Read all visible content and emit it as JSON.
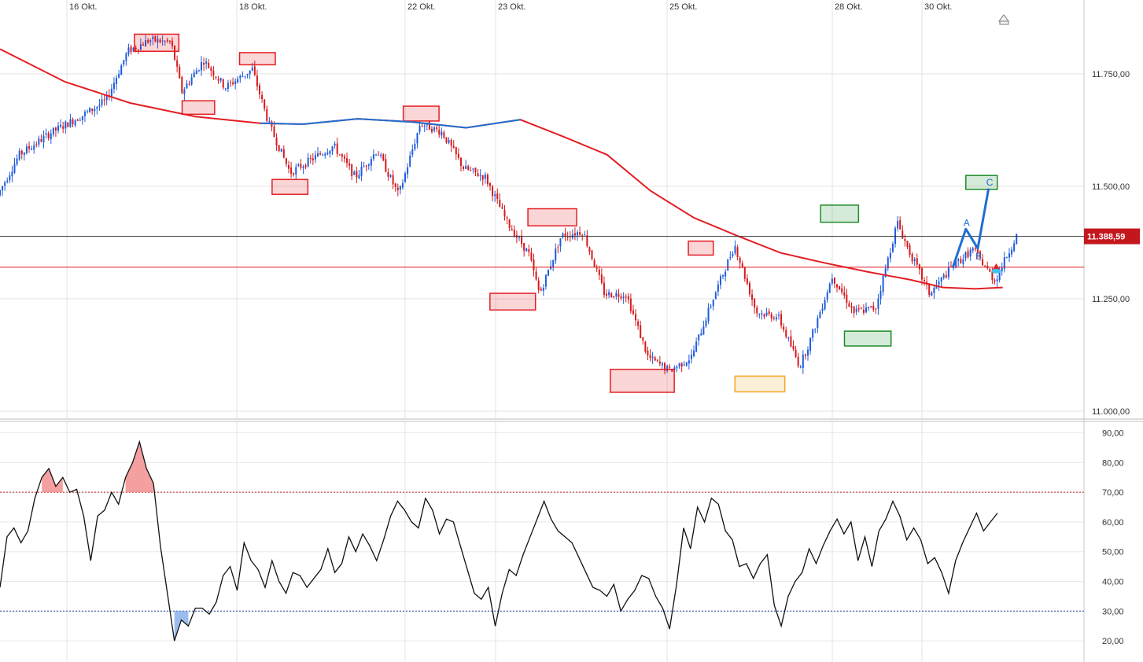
{
  "chart_data": [
    {
      "type": "candlestick",
      "x_labels": [
        "16 Okt.",
        "18 Okt.",
        "22 Okt.",
        "23 Okt.",
        "25 Okt.",
        "28 Okt.",
        "30 Okt."
      ],
      "y_ticks": [
        "11.750,00",
        "11.500,00",
        "11.250,00",
        "11.000,00"
      ],
      "ylim": [
        11000,
        11900
      ],
      "last_price_label": "11.388,59",
      "last_price": 11388.59,
      "reference_level": 11320,
      "grid": true,
      "moving_average_path": [
        [
          0,
          11805
        ],
        [
          0.06,
          11732
        ],
        [
          0.12,
          11685
        ],
        [
          0.18,
          11655
        ],
        [
          0.24,
          11640
        ],
        [
          0.28,
          11638
        ],
        [
          0.33,
          11650
        ],
        [
          0.38,
          11643
        ],
        [
          0.43,
          11630
        ],
        [
          0.48,
          11648
        ],
        [
          0.52,
          11610
        ],
        [
          0.56,
          11570
        ],
        [
          0.6,
          11490
        ],
        [
          0.64,
          11430
        ],
        [
          0.68,
          11390
        ],
        [
          0.72,
          11352
        ],
        [
          0.76,
          11330
        ],
        [
          0.8,
          11310
        ],
        [
          0.84,
          11292
        ],
        [
          0.87,
          11275
        ],
        [
          0.9,
          11272
        ],
        [
          0.925,
          11275
        ]
      ],
      "price_path": [
        [
          0.0,
          11480
        ],
        [
          0.02,
          11570
        ],
        [
          0.05,
          11620
        ],
        [
          0.08,
          11660
        ],
        [
          0.1,
          11690
        ],
        [
          0.12,
          11800
        ],
        [
          0.14,
          11825
        ],
        [
          0.16,
          11820
        ],
        [
          0.17,
          11710
        ],
        [
          0.19,
          11780
        ],
        [
          0.21,
          11720
        ],
        [
          0.235,
          11760
        ],
        [
          0.25,
          11640
        ],
        [
          0.27,
          11530
        ],
        [
          0.29,
          11560
        ],
        [
          0.31,
          11590
        ],
        [
          0.33,
          11520
        ],
        [
          0.35,
          11580
        ],
        [
          0.37,
          11480
        ],
        [
          0.39,
          11640
        ],
        [
          0.41,
          11620
        ],
        [
          0.43,
          11540
        ],
        [
          0.45,
          11520
        ],
        [
          0.47,
          11420
        ],
        [
          0.49,
          11350
        ],
        [
          0.5,
          11260
        ],
        [
          0.52,
          11390
        ],
        [
          0.54,
          11400
        ],
        [
          0.56,
          11260
        ],
        [
          0.58,
          11260
        ],
        [
          0.6,
          11120
        ],
        [
          0.62,
          11090
        ],
        [
          0.64,
          11120
        ],
        [
          0.66,
          11250
        ],
        [
          0.68,
          11370
        ],
        [
          0.7,
          11220
        ],
        [
          0.72,
          11210
        ],
        [
          0.74,
          11100
        ],
        [
          0.75,
          11160
        ],
        [
          0.77,
          11300
        ],
        [
          0.79,
          11220
        ],
        [
          0.81,
          11230
        ],
        [
          0.83,
          11420
        ],
        [
          0.84,
          11360
        ],
        [
          0.86,
          11260
        ],
        [
          0.88,
          11320
        ],
        [
          0.9,
          11360
        ],
        [
          0.92,
          11290
        ],
        [
          0.94,
          11390
        ]
      ],
      "pattern_boxes": [
        {
          "x": [
            0.124,
            0.165
          ],
          "y": [
            11800,
            11838
          ],
          "color": "#e31e24"
        },
        {
          "x": [
            0.221,
            0.254
          ],
          "y": [
            11770,
            11797
          ],
          "color": "#e31e24"
        },
        {
          "x": [
            0.168,
            0.198
          ],
          "y": [
            11660,
            11690
          ],
          "color": "#e31e24"
        },
        {
          "x": [
            0.251,
            0.284
          ],
          "y": [
            11482,
            11515
          ],
          "color": "#e31e24"
        },
        {
          "x": [
            0.372,
            0.405
          ],
          "y": [
            11645,
            11678
          ],
          "color": "#e31e24"
        },
        {
          "x": [
            0.487,
            0.532
          ],
          "y": [
            11412,
            11450
          ],
          "color": "#e31e24"
        },
        {
          "x": [
            0.452,
            0.494
          ],
          "y": [
            11225,
            11262
          ],
          "color": "#e31e24"
        },
        {
          "x": [
            0.563,
            0.622
          ],
          "y": [
            11042,
            11093
          ],
          "color": "#e31e24"
        },
        {
          "x": [
            0.635,
            0.658
          ],
          "y": [
            11347,
            11378
          ],
          "color": "#e31e24"
        },
        {
          "x": [
            0.678,
            0.724
          ],
          "y": [
            11043,
            11078
          ],
          "color": "#f5a623"
        },
        {
          "x": [
            0.757,
            0.792
          ],
          "y": [
            11420,
            11458
          ],
          "color": "#1e8c2a"
        },
        {
          "x": [
            0.779,
            0.822
          ],
          "y": [
            11145,
            11178
          ],
          "color": "#1e8c2a"
        },
        {
          "x": [
            0.891,
            0.92
          ],
          "y": [
            11493,
            11524
          ],
          "color": "#1e8c2a"
        }
      ],
      "wave_projection": {
        "points": [
          [
            0.879,
            11320
          ],
          [
            0.891,
            11405
          ],
          [
            0.902,
            11362
          ],
          [
            0.912,
            11495
          ]
        ],
        "labels": [
          "A",
          "B",
          "C"
        ]
      }
    },
    {
      "type": "line",
      "y_ticks": [
        "90,00",
        "80,00",
        "70,00",
        "60,00",
        "50,00",
        "40,00",
        "30,00",
        "20,00"
      ],
      "ylim": [
        15,
        92
      ],
      "upper_threshold": 70,
      "lower_threshold": 30,
      "values": [
        38,
        55,
        58,
        53,
        57,
        68,
        75,
        78,
        72,
        75,
        70,
        71,
        62,
        47,
        62,
        64,
        70,
        66,
        75,
        80,
        87,
        78,
        73,
        52,
        36,
        20,
        27,
        25,
        31,
        31,
        29,
        33,
        42,
        45,
        37,
        53,
        47,
        44,
        38,
        47,
        40,
        36,
        43,
        42,
        38,
        41,
        44,
        51,
        43,
        46,
        55,
        50,
        56,
        52,
        47,
        54,
        62,
        67,
        64,
        60,
        58,
        68,
        64,
        56,
        61,
        60,
        52,
        44,
        36,
        34,
        38,
        25,
        36,
        44,
        42,
        49,
        55,
        61,
        67,
        61,
        57,
        55,
        53,
        48,
        43,
        38,
        37,
        35,
        39,
        30,
        34,
        37,
        42,
        41,
        35,
        31,
        24,
        39,
        58,
        51,
        65,
        60,
        68,
        66,
        57,
        54,
        45,
        46,
        41,
        46,
        49,
        32,
        25,
        35,
        40,
        43,
        51,
        46,
        52,
        57,
        61,
        56,
        60,
        47,
        55,
        45,
        57,
        61,
        67,
        62,
        54,
        58,
        54,
        46,
        48,
        43,
        36,
        47,
        53,
        58,
        63,
        57,
        60,
        63
      ]
    }
  ]
}
